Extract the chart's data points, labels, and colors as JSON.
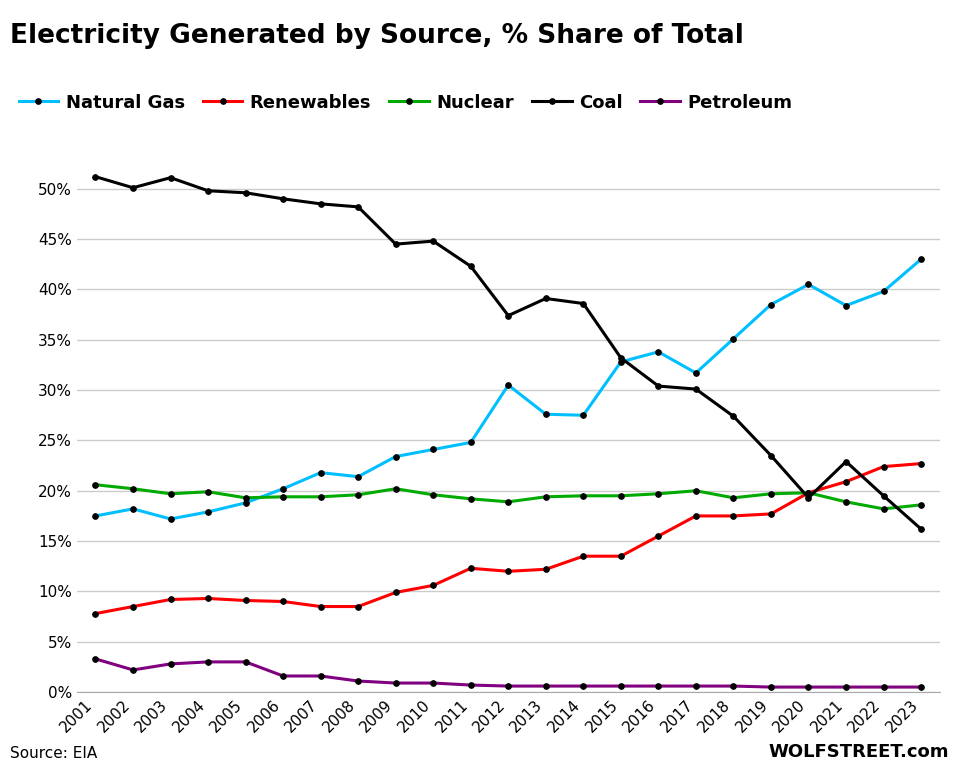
{
  "title": "Electricity Generated by Source, % Share of Total",
  "source": "Source: EIA",
  "watermark": "WOLFSTREET.com",
  "years": [
    2001,
    2002,
    2003,
    2004,
    2005,
    2006,
    2007,
    2008,
    2009,
    2010,
    2011,
    2012,
    2013,
    2014,
    2015,
    2016,
    2017,
    2018,
    2019,
    2020,
    2021,
    2022,
    2023
  ],
  "series": {
    "Natural Gas": {
      "color": "#00BFFF",
      "values": [
        17.5,
        18.2,
        17.2,
        17.9,
        18.8,
        20.2,
        21.8,
        21.4,
        23.4,
        24.1,
        24.8,
        30.5,
        27.6,
        27.5,
        32.8,
        33.8,
        31.7,
        35.1,
        38.5,
        40.5,
        38.4,
        39.8,
        43.0
      ]
    },
    "Renewables": {
      "color": "#FF0000",
      "values": [
        7.8,
        8.5,
        9.2,
        9.3,
        9.1,
        9.0,
        8.5,
        8.5,
        9.9,
        10.6,
        12.3,
        12.0,
        12.2,
        13.5,
        13.5,
        15.5,
        17.5,
        17.5,
        17.7,
        19.8,
        20.9,
        22.4,
        22.7
      ]
    },
    "Nuclear": {
      "color": "#00AA00",
      "values": [
        20.6,
        20.2,
        19.7,
        19.9,
        19.3,
        19.4,
        19.4,
        19.6,
        20.2,
        19.6,
        19.2,
        18.9,
        19.4,
        19.5,
        19.5,
        19.7,
        20.0,
        19.3,
        19.7,
        19.8,
        18.9,
        18.2,
        18.6
      ]
    },
    "Coal": {
      "color": "#000000",
      "values": [
        51.2,
        50.1,
        51.1,
        49.8,
        49.6,
        49.0,
        48.5,
        48.2,
        44.5,
        44.8,
        42.3,
        37.4,
        39.1,
        38.6,
        33.2,
        30.4,
        30.1,
        27.4,
        23.5,
        19.3,
        22.9,
        19.5,
        16.2
      ]
    },
    "Petroleum": {
      "color": "#800080",
      "values": [
        3.3,
        2.2,
        2.8,
        3.0,
        3.0,
        1.6,
        1.6,
        1.1,
        0.9,
        0.9,
        0.7,
        0.6,
        0.6,
        0.6,
        0.6,
        0.6,
        0.6,
        0.6,
        0.5,
        0.5,
        0.5,
        0.5,
        0.5
      ]
    }
  },
  "legend_order": [
    "Natural Gas",
    "Renewables",
    "Nuclear",
    "Coal",
    "Petroleum"
  ],
  "ylim": [
    0,
    55
  ],
  "yticks": [
    0,
    5,
    10,
    15,
    20,
    25,
    30,
    35,
    40,
    45,
    50
  ],
  "ytick_labels": [
    "0%",
    "5%",
    "10%",
    "15%",
    "20%",
    "25%",
    "30%",
    "35%",
    "40%",
    "45%",
    "50%"
  ],
  "bg_color": "#FFFFFF",
  "grid_color": "#CCCCCC",
  "title_fontsize": 19,
  "legend_fontsize": 13,
  "tick_fontsize": 11,
  "source_fontsize": 11,
  "watermark_fontsize": 13
}
